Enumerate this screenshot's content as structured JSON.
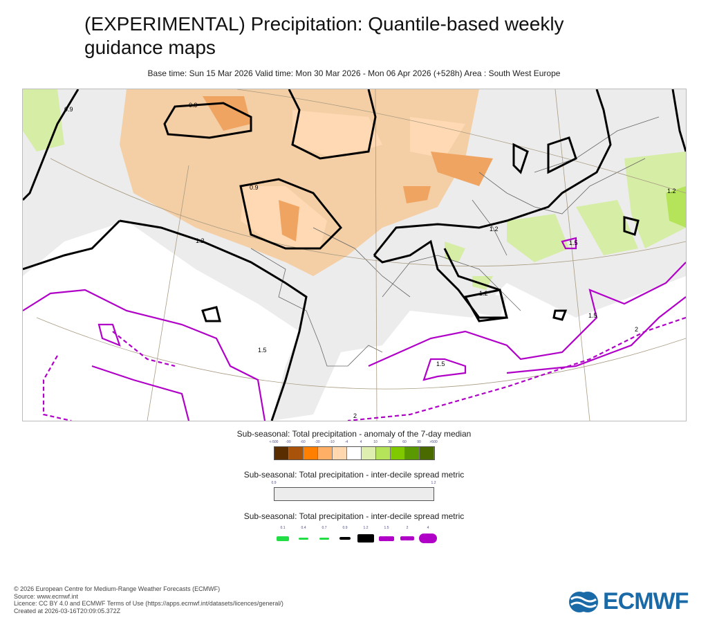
{
  "title": "(EXPERIMENTAL) Precipitation: Quantile-based weekly guidance maps",
  "subtitle": "Base time: Sun 15 Mar 2026 Valid time: Mon 30 Mar 2026 - Mon 06 Apr 2026 (+528h) Area : South West Europe",
  "map": {
    "contour_labels": [
      "0.9",
      "0.9",
      "0.9",
      "1.2",
      "1.2",
      "1.2",
      "1.5",
      "1.5",
      "1.5",
      "2",
      "2",
      "1.5",
      "1.2"
    ]
  },
  "legend1": {
    "title": "Sub-seasonal: Total precipitation - anomaly of the 7-day median",
    "ticks": [
      "<-500",
      "-90",
      "-60",
      "-30",
      "-10",
      "-4",
      "4",
      "10",
      "30",
      "60",
      "90",
      ">500"
    ],
    "colors": [
      "#5a2d00",
      "#a8520a",
      "#ff8000",
      "#ffb066",
      "#ffd8b0",
      "#ffffff",
      "#ddeeb0",
      "#b5e35a",
      "#80c800",
      "#5a9a00",
      "#4a6a00"
    ]
  },
  "legend2": {
    "title": "Sub-seasonal: Total precipitation - inter-decile spread metric",
    "ticks": [
      "0.9",
      "1.2"
    ],
    "color": "#ececec"
  },
  "legend3": {
    "title": "Sub-seasonal: Total precipitation - inter-decile spread metric",
    "ticks": [
      "0.1",
      "0.4",
      "0.7",
      "0.9",
      "1.2",
      "1.5",
      "2",
      "4"
    ]
  },
  "footer": [
    "© 2026 European Centre for Medium-Range Weather Forecasts (ECMWF)",
    "Source: www.ecmwf.int",
    "Licence: CC BY 4.0 and ECMWF Terms of Use (https://apps.ecmwf.int/datasets/licences/general/)",
    "Created at 2026-03-16T20:09:05.372Z"
  ],
  "logo": "ECMWF"
}
